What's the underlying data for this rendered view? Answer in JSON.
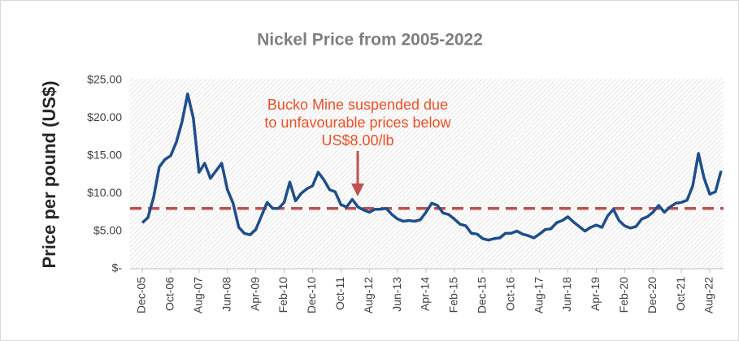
{
  "chart_data": {
    "type": "line",
    "title": "Nickel Price from 2005-2022",
    "y_label": "Price per pound (US$)",
    "annotation": [
      "Bucko Mine suspended due",
      "to unfavourable prices below",
      "US$8.00/lb"
    ],
    "annotation_color": "#f04e23",
    "reference_line": {
      "value": 8,
      "color": "#c0504d"
    },
    "categories": [
      "Dec-05",
      null,
      null,
      null,
      null,
      "Oct-06",
      null,
      null,
      null,
      null,
      "Aug-07",
      null,
      null,
      null,
      null,
      "Jun-08",
      null,
      null,
      null,
      null,
      "Apr-09",
      null,
      null,
      null,
      null,
      "Feb-10",
      null,
      null,
      null,
      null,
      "Dec-10",
      null,
      null,
      null,
      null,
      "Oct-11",
      null,
      null,
      null,
      null,
      "Aug-12",
      null,
      null,
      null,
      null,
      "Jun-13",
      null,
      null,
      null,
      null,
      "Apr-14",
      null,
      null,
      null,
      null,
      "Feb-15",
      null,
      null,
      null,
      null,
      "Dec-15",
      null,
      null,
      null,
      null,
      "Oct-16",
      null,
      null,
      null,
      null,
      "Aug-17",
      null,
      null,
      null,
      null,
      "Jun-18",
      null,
      null,
      null,
      null,
      "Apr-19",
      null,
      null,
      null,
      null,
      "Feb-20",
      null,
      null,
      null,
      null,
      "Dec-20",
      null,
      null,
      null,
      null,
      "Oct-21",
      null,
      null,
      null,
      null,
      "Aug-22",
      null,
      null
    ],
    "series": [
      {
        "name": "Nickel",
        "color": "#1f4e8c",
        "values": [
          6.1,
          6.8,
          9.5,
          13.5,
          14.5,
          15,
          16.8,
          19.5,
          23.2,
          20,
          12.8,
          14,
          12,
          13,
          14,
          10.5,
          8.7,
          5.5,
          4.7,
          4.5,
          5.2,
          7,
          8.8,
          8,
          8,
          8.8,
          11.5,
          9,
          10,
          10.6,
          11,
          12.8,
          11.8,
          10.5,
          10.2,
          8.5,
          8.2,
          9.2,
          8.2,
          7.8,
          7.5,
          7.9,
          7.9,
          8,
          7.2,
          6.6,
          6.3,
          6.4,
          6.3,
          6.5,
          7.5,
          8.7,
          8.4,
          7.4,
          7.2,
          6.6,
          5.9,
          5.7,
          4.7,
          4.6,
          4,
          3.8,
          4,
          4.1,
          4.7,
          4.7,
          5,
          4.6,
          4.4,
          4.1,
          4.6,
          5.2,
          5.3,
          6.1,
          6.4,
          6.9,
          6.2,
          5.6,
          5,
          5.5,
          5.8,
          5.5,
          7,
          7.9,
          6.4,
          5.7,
          5.4,
          5.6,
          6.6,
          6.9,
          7.5,
          8.4,
          7.5,
          8.2,
          8.7,
          8.8,
          9.1,
          11,
          15.3,
          12,
          9.9,
          10.2,
          13
        ]
      }
    ],
    "ylim": [
      0,
      25
    ],
    "yticks": [
      {
        "value": 0,
        "label": "$-"
      },
      {
        "value": 5,
        "label": "$5.00"
      },
      {
        "value": 10,
        "label": "$10.00"
      },
      {
        "value": 15,
        "label": "$15.00"
      },
      {
        "value": 20,
        "label": "$20.00"
      },
      {
        "value": 25,
        "label": "$25.00"
      }
    ]
  }
}
